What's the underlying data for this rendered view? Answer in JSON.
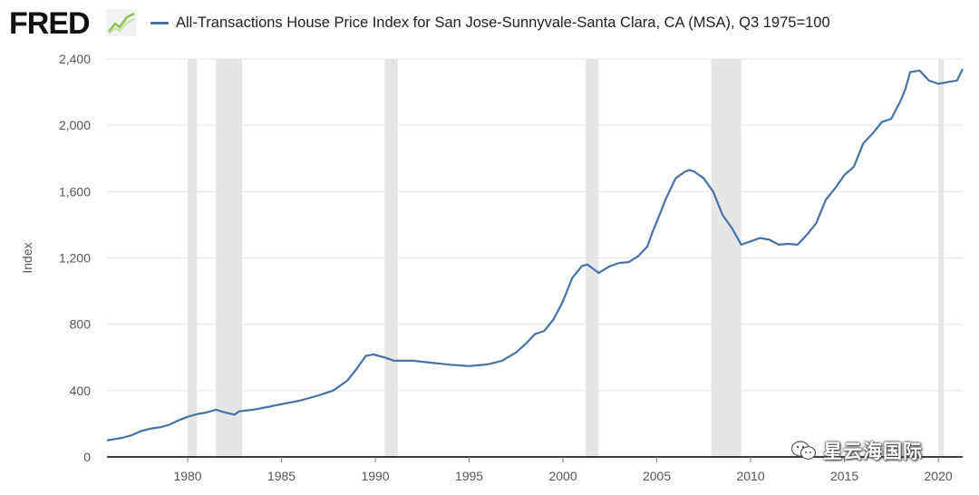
{
  "header": {
    "logo_text": "FRED",
    "series_title": "All-Transactions House Price Index for San Jose-Sunnyvale-Santa Clara, CA (MSA), Q3 1975=100"
  },
  "watermark": {
    "text": "星云海国际"
  },
  "colors": {
    "line": "#4572a7",
    "recession": "#e6e6e6",
    "grid": "#e5e5e5",
    "axis": "#000000"
  },
  "chart_data": {
    "type": "line",
    "title": "All-Transactions House Price Index for San Jose-Sunnyvale-Santa Clara, CA (MSA), Q3 1975=100",
    "xlabel": "",
    "ylabel": "Index",
    "xlim": [
      1975.7,
      2021.3
    ],
    "ylim": [
      0,
      2400
    ],
    "x_ticks": [
      1980,
      1985,
      1990,
      1995,
      2000,
      2005,
      2010,
      2015,
      2020
    ],
    "x_tick_labels": [
      "1980",
      "1985",
      "1990",
      "1995",
      "2000",
      "2005",
      "2010",
      "2015",
      "2020"
    ],
    "y_ticks": [
      0,
      400,
      800,
      1200,
      1600,
      2000,
      2400
    ],
    "y_tick_labels": [
      "0",
      "400",
      "800",
      "1,200",
      "1,600",
      "2,000",
      "2,400"
    ],
    "grid": "horizontal",
    "recessions": [
      [
        1980.0,
        1980.5
      ],
      [
        1981.5,
        1982.9
      ],
      [
        1990.5,
        1991.2
      ],
      [
        2001.2,
        2001.9
      ],
      [
        2007.9,
        2009.5
      ],
      [
        2020.0,
        2020.3
      ]
    ],
    "series": [
      {
        "name": "All-Transactions House Price Index for San Jose-Sunnyvale-Santa Clara, CA (MSA), Q3 1975=100",
        "x": [
          1975.7,
          1976.5,
          1977.0,
          1977.5,
          1978.0,
          1978.5,
          1979.0,
          1979.5,
          1980.0,
          1980.5,
          1981.0,
          1981.5,
          1982.0,
          1982.5,
          1982.75,
          1983.5,
          1984.0,
          1985.0,
          1986.0,
          1987.0,
          1987.75,
          1988.5,
          1989.0,
          1989.5,
          1989.9,
          1990.5,
          1991.0,
          1992.0,
          1993.0,
          1994.0,
          1995.0,
          1996.0,
          1996.75,
          1997.5,
          1998.0,
          1998.5,
          1999.0,
          1999.5,
          2000.0,
          2000.5,
          2001.0,
          2001.3,
          2001.9,
          2002.5,
          2003.0,
          2003.5,
          2004.0,
          2004.5,
          2004.75,
          2005.0,
          2005.5,
          2006.0,
          2006.5,
          2006.75,
          2007.0,
          2007.5,
          2008.0,
          2008.5,
          2009.0,
          2009.5,
          2010.0,
          2010.5,
          2011.0,
          2011.5,
          2012.0,
          2012.5,
          2013.0,
          2013.5,
          2014.0,
          2014.5,
          2015.0,
          2015.5,
          2016.0,
          2016.5,
          2017.0,
          2017.5,
          2018.0,
          2018.25,
          2018.5,
          2019.0,
          2019.5,
          2020.0,
          2020.5,
          2021.0,
          2021.3
        ],
        "y": [
          100,
          115,
          130,
          155,
          170,
          178,
          193,
          220,
          242,
          258,
          268,
          285,
          268,
          255,
          275,
          285,
          295,
          318,
          340,
          372,
          400,
          460,
          530,
          610,
          618,
          600,
          580,
          580,
          568,
          556,
          548,
          558,
          580,
          630,
          680,
          740,
          760,
          830,
          940,
          1080,
          1150,
          1160,
          1110,
          1150,
          1170,
          1175,
          1210,
          1270,
          1350,
          1420,
          1560,
          1680,
          1720,
          1730,
          1720,
          1680,
          1600,
          1460,
          1380,
          1280,
          1300,
          1320,
          1310,
          1280,
          1285,
          1280,
          1340,
          1410,
          1550,
          1620,
          1700,
          1750,
          1890,
          1950,
          2020,
          2040,
          2150,
          2220,
          2320,
          2330,
          2270,
          2250,
          2260,
          2270,
          2340
        ]
      }
    ]
  }
}
